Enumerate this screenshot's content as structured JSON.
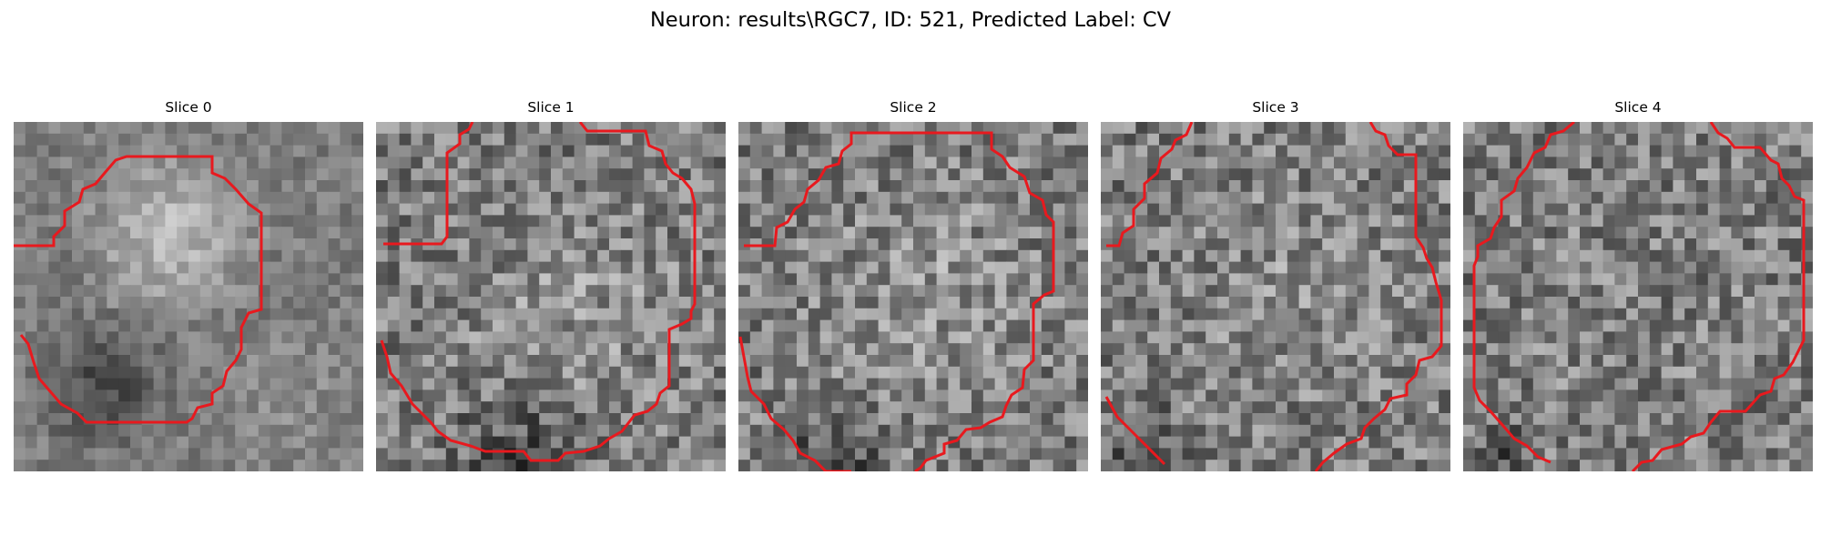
{
  "figure": {
    "title": "Neuron: results\\RGC7, ID: 521, Predicted Label: CV"
  },
  "slices": [
    {
      "title": "Slice 0",
      "contour_color": "#e8191e"
    },
    {
      "title": "Slice 1",
      "contour_color": "#e8191e"
    },
    {
      "title": "Slice 2",
      "contour_color": "#e8191e"
    },
    {
      "title": "Slice 3",
      "contour_color": "#e8191e"
    },
    {
      "title": "Slice 4",
      "contour_color": "#e8191e"
    }
  ]
}
